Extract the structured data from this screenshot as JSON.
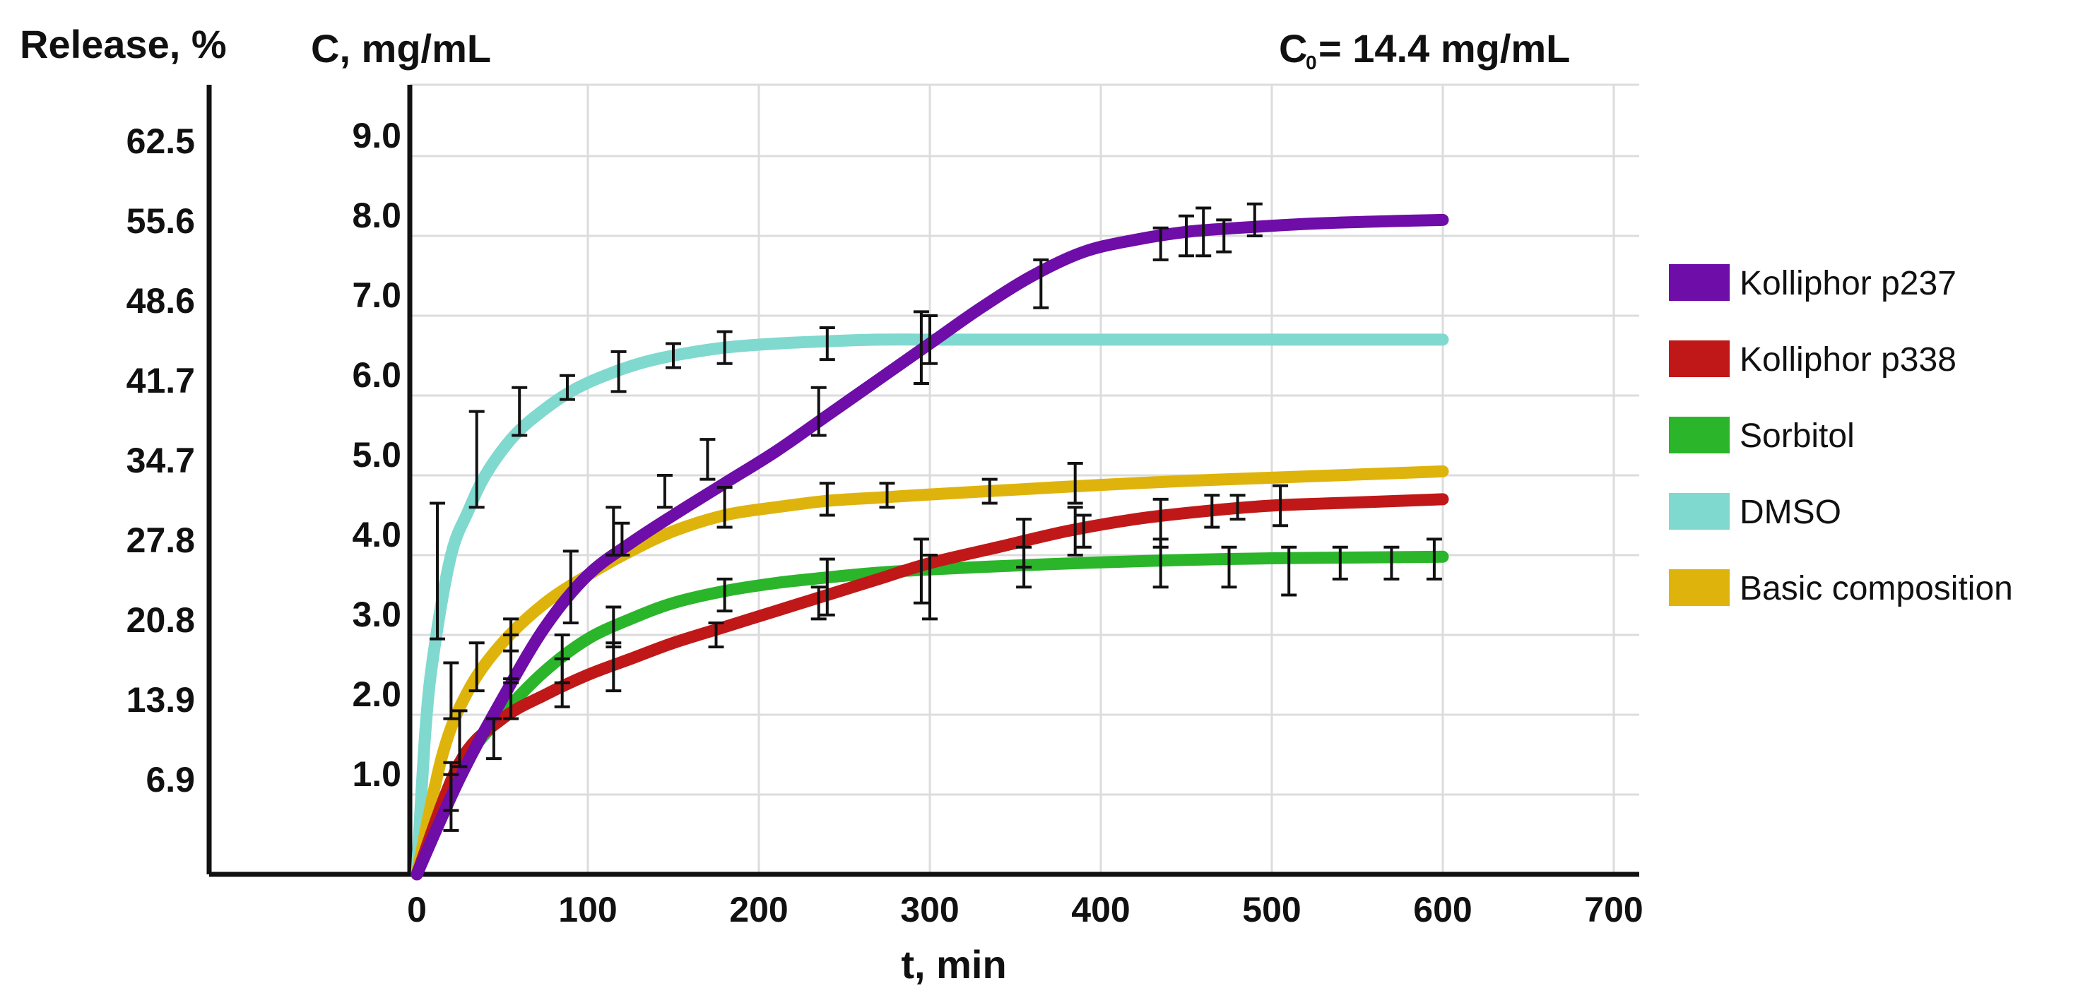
{
  "chart_data": {
    "type": "line",
    "left_axis_title": "Release, %",
    "y_title": "C, mg/mL",
    "c0_label": "C",
    "c0_sub": "0",
    "c0_value": "= 14.4 mg/mL",
    "x_title": "t, min",
    "x_ticks": [
      0,
      100,
      200,
      300,
      400,
      500,
      600,
      700
    ],
    "x_tick_labels": [
      "0",
      "100",
      "200",
      "300",
      "400",
      "500",
      "600",
      "700"
    ],
    "y_ticks": [
      1.0,
      2.0,
      3.0,
      4.0,
      5.0,
      6.0,
      7.0,
      8.0,
      9.0
    ],
    "y_tick_labels": [
      "1.0",
      "2.0",
      "3.0",
      "4.0",
      "5.0",
      "6.0",
      "7.0",
      "8.0",
      "9.0"
    ],
    "release_tick_labels": [
      "6.9",
      "13.9",
      "20.8",
      "27.8",
      "34.7",
      "41.7",
      "48.6",
      "55.6",
      "62.5"
    ],
    "xlim": [
      0,
      700
    ],
    "ylim": [
      0,
      10
    ],
    "grid": true,
    "legend_position": "right",
    "series": [
      {
        "name": "Kolliphor p237",
        "color": "#6e0da8",
        "x": [
          0,
          25,
          50,
          75,
          100,
          125,
          150,
          180,
          210,
          240,
          270,
          300,
          330,
          360,
          390,
          420,
          450,
          480,
          520,
          560,
          600
        ],
        "y": [
          0,
          1.2,
          2.2,
          3.1,
          3.75,
          4.15,
          4.5,
          4.9,
          5.3,
          5.75,
          6.2,
          6.65,
          7.1,
          7.5,
          7.8,
          7.95,
          8.05,
          8.1,
          8.15,
          8.18,
          8.2
        ],
        "points": [
          {
            "t": 20,
            "c": 0.9,
            "err": 0.35
          },
          {
            "t": 55,
            "c": 2.7,
            "err": 0.3
          },
          {
            "t": 90,
            "c": 3.6,
            "err": 0.45
          },
          {
            "t": 115,
            "c": 4.3,
            "err": 0.3
          },
          {
            "t": 145,
            "c": 4.8,
            "err": 0.2
          },
          {
            "t": 170,
            "c": 5.2,
            "err": 0.25
          },
          {
            "t": 235,
            "c": 5.8,
            "err": 0.3
          },
          {
            "t": 295,
            "c": 6.6,
            "err": 0.45
          },
          {
            "t": 365,
            "c": 7.4,
            "err": 0.3
          },
          {
            "t": 435,
            "c": 7.9,
            "err": 0.2
          },
          {
            "t": 450,
            "c": 8.0,
            "err": 0.25
          },
          {
            "t": 460,
            "c": 8.05,
            "err": 0.3
          },
          {
            "t": 472,
            "c": 8.0,
            "err": 0.2
          },
          {
            "t": 490,
            "c": 8.2,
            "err": 0.2
          }
        ]
      },
      {
        "name": "Kolliphor p338",
        "color": "#c01818",
        "x": [
          0,
          25,
          50,
          75,
          100,
          125,
          150,
          180,
          210,
          240,
          270,
          300,
          340,
          380,
          420,
          460,
          500,
          550,
          600
        ],
        "y": [
          0,
          1.4,
          1.95,
          2.25,
          2.5,
          2.7,
          2.9,
          3.1,
          3.3,
          3.5,
          3.7,
          3.9,
          4.1,
          4.3,
          4.45,
          4.55,
          4.62,
          4.66,
          4.7
        ],
        "points": [
          {
            "t": 20,
            "c": 1.1,
            "err": 0.3
          },
          {
            "t": 45,
            "c": 1.7,
            "err": 0.25
          },
          {
            "t": 85,
            "c": 2.4,
            "err": 0.3
          },
          {
            "t": 115,
            "c": 2.6,
            "err": 0.3
          },
          {
            "t": 175,
            "c": 3.0,
            "err": 0.15
          },
          {
            "t": 235,
            "c": 3.4,
            "err": 0.2
          },
          {
            "t": 295,
            "c": 3.8,
            "err": 0.4
          },
          {
            "t": 355,
            "c": 4.15,
            "err": 0.3
          },
          {
            "t": 385,
            "c": 4.3,
            "err": 0.3
          },
          {
            "t": 435,
            "c": 4.4,
            "err": 0.3
          },
          {
            "t": 465,
            "c": 4.55,
            "err": 0.2
          },
          {
            "t": 480,
            "c": 4.6,
            "err": 0.15
          },
          {
            "t": 505,
            "c": 4.62,
            "err": 0.25
          }
        ]
      },
      {
        "name": "Sorbitol",
        "color": "#2bb52b",
        "x": [
          0,
          25,
          50,
          75,
          100,
          125,
          150,
          180,
          210,
          240,
          270,
          300,
          350,
          400,
          450,
          500,
          550,
          600
        ],
        "y": [
          0,
          1.3,
          2.0,
          2.55,
          2.95,
          3.2,
          3.4,
          3.55,
          3.65,
          3.72,
          3.78,
          3.82,
          3.87,
          3.91,
          3.94,
          3.96,
          3.97,
          3.98
        ],
        "points": [
          {
            "t": 25,
            "c": 1.7,
            "err": 0.35
          },
          {
            "t": 55,
            "c": 2.2,
            "err": 0.25
          },
          {
            "t": 85,
            "c": 2.7,
            "err": 0.3
          },
          {
            "t": 115,
            "c": 3.1,
            "err": 0.25
          },
          {
            "t": 180,
            "c": 3.5,
            "err": 0.2
          },
          {
            "t": 240,
            "c": 3.6,
            "err": 0.35
          },
          {
            "t": 300,
            "c": 3.6,
            "err": 0.4
          },
          {
            "t": 355,
            "c": 3.85,
            "err": 0.25
          },
          {
            "t": 390,
            "c": 4.3,
            "err": 0.2
          },
          {
            "t": 435,
            "c": 3.9,
            "err": 0.3
          },
          {
            "t": 475,
            "c": 3.85,
            "err": 0.25
          },
          {
            "t": 510,
            "c": 3.8,
            "err": 0.3
          },
          {
            "t": 540,
            "c": 3.9,
            "err": 0.2
          },
          {
            "t": 570,
            "c": 3.9,
            "err": 0.2
          },
          {
            "t": 595,
            "c": 3.95,
            "err": 0.25
          }
        ]
      },
      {
        "name": "DMSO",
        "color": "#7fd9cf",
        "x": [
          0,
          5,
          10,
          20,
          30,
          40,
          55,
          70,
          90,
          110,
          130,
          150,
          180,
          210,
          240,
          270,
          300,
          350,
          400,
          450,
          500,
          550,
          600
        ],
        "y": [
          0,
          1.8,
          2.8,
          4.0,
          4.55,
          5.0,
          5.45,
          5.75,
          6.05,
          6.25,
          6.4,
          6.5,
          6.6,
          6.65,
          6.68,
          6.7,
          6.7,
          6.7,
          6.7,
          6.7,
          6.7,
          6.7,
          6.7
        ],
        "points": [
          {
            "t": 12,
            "c": 3.8,
            "err": 0.85
          },
          {
            "t": 35,
            "c": 5.2,
            "err": 0.6
          },
          {
            "t": 60,
            "c": 5.8,
            "err": 0.3
          },
          {
            "t": 88,
            "c": 6.1,
            "err": 0.15
          },
          {
            "t": 118,
            "c": 6.3,
            "err": 0.25
          },
          {
            "t": 150,
            "c": 6.5,
            "err": 0.15
          },
          {
            "t": 180,
            "c": 6.6,
            "err": 0.2
          },
          {
            "t": 240,
            "c": 6.65,
            "err": 0.2
          },
          {
            "t": 300,
            "c": 6.7,
            "err": 0.3
          }
        ]
      },
      {
        "name": "Basic composition",
        "color": "#deb40c",
        "x": [
          0,
          15,
          30,
          50,
          75,
          100,
          125,
          150,
          180,
          210,
          240,
          270,
          300,
          350,
          400,
          450,
          500,
          550,
          600
        ],
        "y": [
          0,
          1.5,
          2.3,
          2.9,
          3.4,
          3.75,
          4.05,
          4.3,
          4.5,
          4.6,
          4.68,
          4.72,
          4.76,
          4.82,
          4.88,
          4.93,
          4.97,
          5.01,
          5.05
        ],
        "points": [
          {
            "t": 20,
            "c": 2.3,
            "err": 0.35
          },
          {
            "t": 35,
            "c": 2.6,
            "err": 0.3
          },
          {
            "t": 55,
            "c": 3.0,
            "err": 0.2
          },
          {
            "t": 120,
            "c": 4.2,
            "err": 0.2
          },
          {
            "t": 180,
            "c": 4.6,
            "err": 0.25
          },
          {
            "t": 240,
            "c": 4.7,
            "err": 0.2
          },
          {
            "t": 275,
            "c": 4.75,
            "err": 0.15
          },
          {
            "t": 335,
            "c": 4.8,
            "err": 0.15
          },
          {
            "t": 385,
            "c": 4.9,
            "err": 0.25
          }
        ]
      }
    ]
  }
}
